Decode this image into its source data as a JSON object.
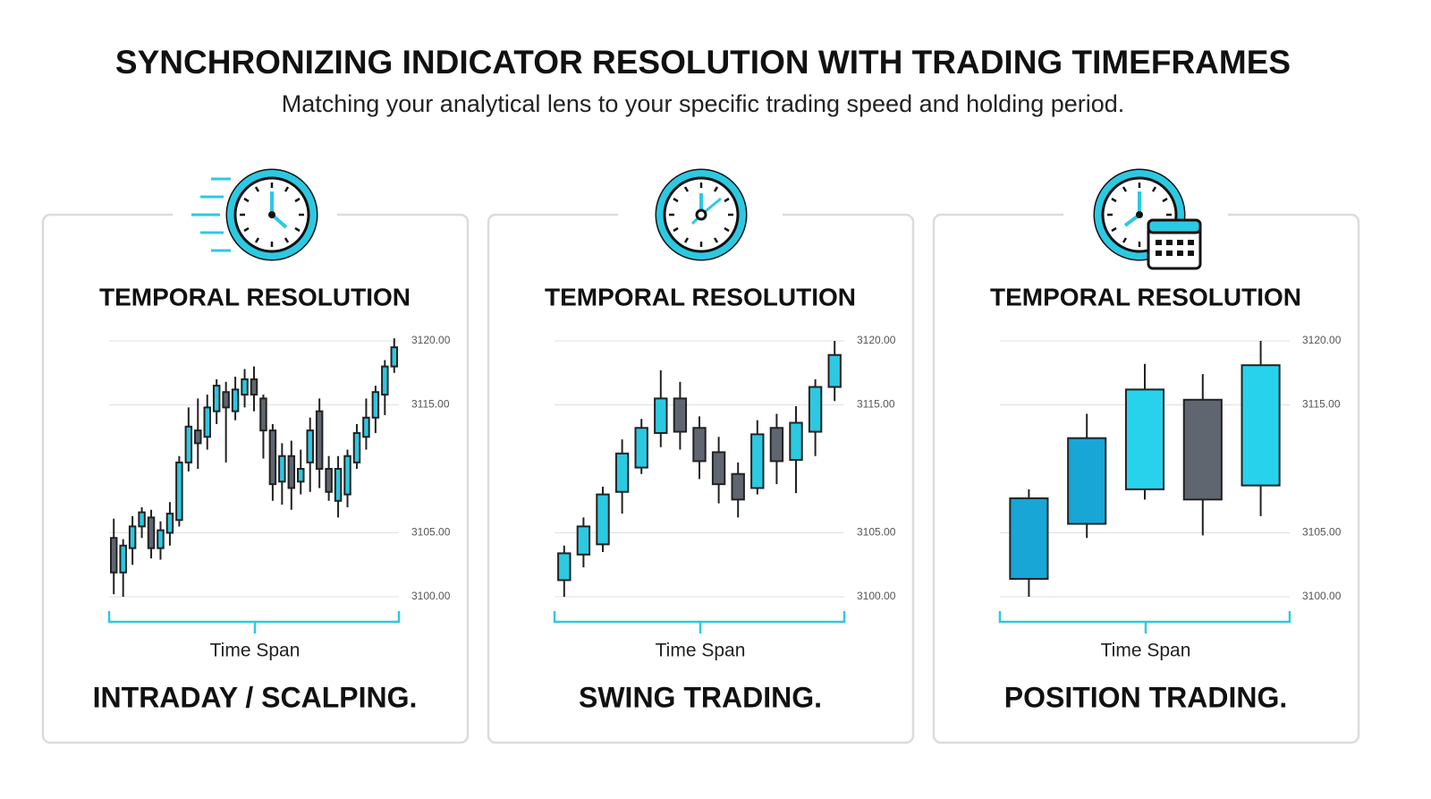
{
  "header": {
    "title": "SYNCHRONIZING INDICATOR RESOLUTION WITH TRADING TIMEFRAMES",
    "subtitle": "Matching your analytical lens to your specific trading speed and holding period."
  },
  "chart_data": [
    {
      "type": "candlestick",
      "title": "TEMPORAL RESOLUTION",
      "xlabel": "Time Span",
      "caption": "INTRADAY / SCALPING.",
      "up_color": "#2cc9e2",
      "down_color": "#5f6670",
      "grid": true,
      "ylim": [
        3100,
        3120
      ],
      "yticks": [
        {
          "value": 3100,
          "label": "3100.00"
        },
        {
          "value": 3105,
          "label": "3105.00"
        },
        {
          "value": 3115,
          "label": "3115.00"
        },
        {
          "value": 3120,
          "label": "3120.00"
        }
      ],
      "open": [
        3104.6,
        3101.9,
        3103.8,
        3105.5,
        3106.2,
        3103.8,
        3105.0,
        3106.0,
        3110.5,
        3113.0,
        3112.5,
        3114.5,
        3116.0,
        3114.5,
        3115.8,
        3117.0,
        3115.5,
        3113.0,
        3109.0,
        3111.0,
        3109.0,
        3110.5,
        3114.5,
        3110.0,
        3107.5,
        3108.0,
        3110.5,
        3112.5,
        3114.0,
        3115.8,
        3118.0
      ],
      "high": [
        3106.1,
        3104.5,
        3106.3,
        3107.0,
        3106.8,
        3105.9,
        3107.4,
        3111.0,
        3114.8,
        3115.5,
        3115.8,
        3117.0,
        3116.8,
        3117.2,
        3117.8,
        3118.0,
        3115.8,
        3113.5,
        3112.0,
        3112.2,
        3111.5,
        3114.0,
        3115.5,
        3111.0,
        3111.0,
        3111.5,
        3113.5,
        3115.5,
        3116.5,
        3118.5,
        3120.2
      ],
      "low": [
        3100.2,
        3100.0,
        3102.5,
        3104.6,
        3103.0,
        3102.9,
        3104.0,
        3105.5,
        3109.8,
        3110.0,
        3111.5,
        3113.5,
        3110.5,
        3113.8,
        3114.8,
        3114.5,
        3110.8,
        3107.5,
        3107.2,
        3106.8,
        3108.0,
        3108.2,
        3108.5,
        3107.5,
        3106.2,
        3107.0,
        3110.0,
        3111.5,
        3112.8,
        3114.2,
        3117.5
      ],
      "close": [
        3101.9,
        3104.0,
        3105.5,
        3106.6,
        3103.8,
        3105.2,
        3106.5,
        3110.5,
        3113.3,
        3112.0,
        3114.8,
        3116.5,
        3114.8,
        3116.2,
        3117.0,
        3115.8,
        3113.0,
        3108.8,
        3111.0,
        3108.5,
        3110.0,
        3113.0,
        3110.0,
        3108.2,
        3110.0,
        3111.0,
        3112.8,
        3114.0,
        3116.0,
        3118.0,
        3119.5
      ]
    },
    {
      "type": "candlestick",
      "title": "TEMPORAL RESOLUTION",
      "xlabel": "Time Span",
      "caption": "SWING TRADING.",
      "up_color": "#2cc9e2",
      "down_color": "#5f6670",
      "grid": true,
      "ylim": [
        3100,
        3120
      ],
      "yticks": [
        {
          "value": 3100,
          "label": "3100.00"
        },
        {
          "value": 3105,
          "label": "3105.00"
        },
        {
          "value": 3115,
          "label": "3115.00"
        },
        {
          "value": 3120,
          "label": "3120.00"
        }
      ],
      "open": [
        3101.3,
        3103.3,
        3104.1,
        3108.2,
        3110.1,
        3112.8,
        3115.5,
        3113.2,
        3111.3,
        3109.6,
        3108.5,
        3113.2,
        3110.7,
        3112.9,
        3116.4
      ],
      "high": [
        3104.0,
        3106.2,
        3108.6,
        3112.3,
        3113.9,
        3117.7,
        3116.8,
        3114.1,
        3112.5,
        3110.5,
        3113.8,
        3114.3,
        3114.9,
        3117.0,
        3120.0
      ],
      "low": [
        3100.0,
        3102.3,
        3103.5,
        3106.5,
        3109.6,
        3111.7,
        3111.5,
        3109.2,
        3107.3,
        3106.2,
        3108.0,
        3108.8,
        3108.1,
        3111.0,
        3115.3
      ],
      "close": [
        3103.4,
        3105.5,
        3108.0,
        3111.2,
        3113.2,
        3115.5,
        3112.9,
        3110.6,
        3108.8,
        3107.6,
        3112.7,
        3110.6,
        3113.6,
        3116.4,
        3118.9
      ]
    },
    {
      "type": "candlestick",
      "title": "TEMPORAL RESOLUTION",
      "xlabel": "Time Span",
      "caption": "POSITION TRADING.",
      "colors": [
        "#18a6d6",
        "#18a6d6",
        "#27d3ec",
        "#5f6670",
        "#27d3ec"
      ],
      "grid": true,
      "ylim": [
        3100,
        3120
      ],
      "yticks": [
        {
          "value": 3100,
          "label": "3100.00"
        },
        {
          "value": 3105,
          "label": "3105.00"
        },
        {
          "value": 3115,
          "label": "3115.00"
        },
        {
          "value": 3120,
          "label": "3120.00"
        }
      ],
      "open": [
        3101.4,
        3105.7,
        3108.4,
        3115.4,
        3108.7
      ],
      "high": [
        3108.4,
        3114.3,
        3118.2,
        3117.4,
        3120.0
      ],
      "low": [
        3100.0,
        3104.6,
        3107.6,
        3104.8,
        3106.3
      ],
      "close": [
        3107.7,
        3112.4,
        3116.2,
        3107.6,
        3118.1
      ]
    }
  ]
}
